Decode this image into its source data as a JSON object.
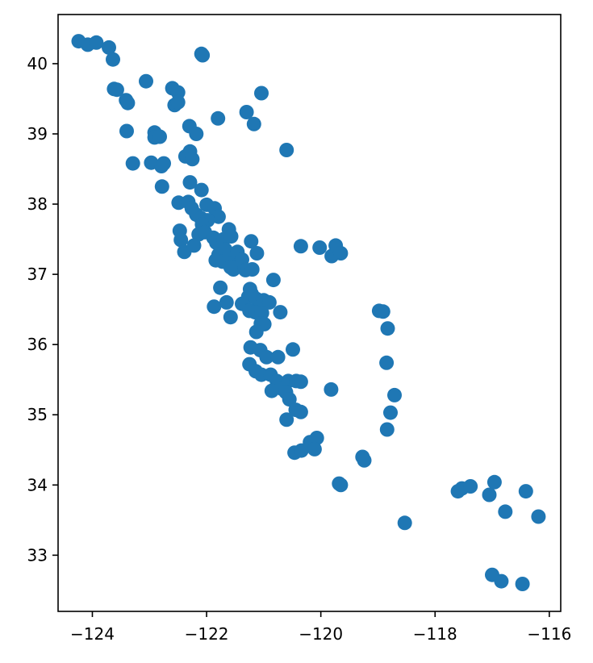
{
  "chart_data": {
    "type": "scatter",
    "title": "",
    "xlabel": "",
    "ylabel": "",
    "xlim": [
      -124.6,
      -115.8
    ],
    "ylim": [
      32.2,
      40.7
    ],
    "grid": false,
    "x_ticks": [
      -124,
      -122,
      -120,
      -118,
      -116
    ],
    "x_tick_labels": [
      "−124",
      "−122",
      "−120",
      "−118",
      "−116"
    ],
    "y_ticks": [
      33,
      34,
      35,
      36,
      37,
      38,
      39,
      40
    ],
    "y_tick_labels": [
      "33",
      "34",
      "35",
      "36",
      "37",
      "38",
      "39",
      "40"
    ],
    "series": [
      {
        "color": "#1f77b4",
        "marker": "circle",
        "points": [
          [
            -124.24,
            40.32
          ],
          [
            -124.08,
            40.27
          ],
          [
            -123.93,
            40.3
          ],
          [
            -123.71,
            40.23
          ],
          [
            -123.64,
            40.06
          ],
          [
            -123.62,
            39.64
          ],
          [
            -123.57,
            39.63
          ],
          [
            -123.41,
            39.48
          ],
          [
            -123.38,
            39.44
          ],
          [
            -123.4,
            39.04
          ],
          [
            -123.29,
            38.58
          ],
          [
            -123.06,
            39.75
          ],
          [
            -122.97,
            38.59
          ],
          [
            -122.91,
            39.02
          ],
          [
            -122.91,
            38.95
          ],
          [
            -122.82,
            38.96
          ],
          [
            -122.79,
            38.54
          ],
          [
            -122.75,
            38.58
          ],
          [
            -122.78,
            38.25
          ],
          [
            -122.6,
            39.65
          ],
          [
            -122.5,
            39.59
          ],
          [
            -122.56,
            39.41
          ],
          [
            -122.5,
            39.45
          ],
          [
            -122.09,
            40.14
          ],
          [
            -122.07,
            40.12
          ],
          [
            -121.3,
            39.31
          ],
          [
            -121.17,
            39.14
          ],
          [
            -121.04,
            39.58
          ],
          [
            -121.8,
            39.22
          ],
          [
            -122.3,
            39.11
          ],
          [
            -122.18,
            39.0
          ],
          [
            -122.37,
            38.68
          ],
          [
            -122.29,
            38.75
          ],
          [
            -122.25,
            38.64
          ],
          [
            -122.29,
            38.31
          ],
          [
            -122.09,
            38.2
          ],
          [
            -122.49,
            38.02
          ],
          [
            -122.32,
            38.03
          ],
          [
            -122.26,
            37.94
          ],
          [
            -122.18,
            37.85
          ],
          [
            -122.1,
            37.8
          ],
          [
            -122.0,
            37.99
          ],
          [
            -121.86,
            37.94
          ],
          [
            -121.79,
            37.82
          ],
          [
            -121.98,
            37.77
          ],
          [
            -122.08,
            37.71
          ],
          [
            -122.14,
            37.57
          ],
          [
            -122.03,
            37.6
          ],
          [
            -121.88,
            37.52
          ],
          [
            -121.83,
            37.45
          ],
          [
            -121.7,
            37.5
          ],
          [
            -121.61,
            37.64
          ],
          [
            -121.57,
            37.54
          ],
          [
            -121.67,
            37.35
          ],
          [
            -121.79,
            37.28
          ],
          [
            -121.84,
            37.2
          ],
          [
            -121.72,
            37.18
          ],
          [
            -121.6,
            37.28
          ],
          [
            -121.55,
            37.16
          ],
          [
            -121.46,
            37.32
          ],
          [
            -121.44,
            37.14
          ],
          [
            -121.38,
            37.21
          ],
          [
            -121.32,
            37.06
          ],
          [
            -121.2,
            37.07
          ],
          [
            -121.22,
            37.47
          ],
          [
            -121.12,
            37.3
          ],
          [
            -122.47,
            37.62
          ],
          [
            -122.45,
            37.49
          ],
          [
            -122.39,
            37.32
          ],
          [
            -122.22,
            37.41
          ],
          [
            -121.53,
            37.07
          ],
          [
            -121.58,
            37.1
          ],
          [
            -121.76,
            36.81
          ],
          [
            -121.65,
            36.6
          ],
          [
            -121.87,
            36.54
          ],
          [
            -121.58,
            36.39
          ],
          [
            -121.38,
            36.58
          ],
          [
            -121.27,
            36.68
          ],
          [
            -121.24,
            36.79
          ],
          [
            -121.21,
            36.72
          ],
          [
            -121.13,
            36.65
          ],
          [
            -121.05,
            36.55
          ],
          [
            -121.0,
            36.63
          ],
          [
            -120.9,
            36.6
          ],
          [
            -121.25,
            36.48
          ],
          [
            -121.15,
            36.46
          ],
          [
            -121.03,
            36.45
          ],
          [
            -121.05,
            36.3
          ],
          [
            -120.99,
            36.29
          ],
          [
            -121.13,
            36.18
          ],
          [
            -120.71,
            36.46
          ],
          [
            -120.83,
            36.92
          ],
          [
            -121.23,
            35.96
          ],
          [
            -121.06,
            35.92
          ],
          [
            -120.95,
            35.82
          ],
          [
            -120.75,
            35.82
          ],
          [
            -120.49,
            35.93
          ],
          [
            -121.25,
            35.72
          ],
          [
            -121.14,
            35.62
          ],
          [
            -121.04,
            35.57
          ],
          [
            -120.88,
            35.57
          ],
          [
            -120.77,
            35.48
          ],
          [
            -120.68,
            35.37
          ],
          [
            -120.86,
            35.34
          ],
          [
            -120.57,
            35.48
          ],
          [
            -120.43,
            35.48
          ],
          [
            -120.35,
            35.47
          ],
          [
            -120.61,
            35.32
          ],
          [
            -120.55,
            35.22
          ],
          [
            -120.44,
            35.07
          ],
          [
            -120.35,
            35.04
          ],
          [
            -120.6,
            34.93
          ],
          [
            -120.46,
            34.46
          ],
          [
            -120.34,
            34.49
          ],
          [
            -120.19,
            34.61
          ],
          [
            -120.07,
            34.67
          ],
          [
            -120.11,
            34.51
          ],
          [
            -120.35,
            37.4
          ],
          [
            -120.02,
            37.38
          ],
          [
            -119.81,
            37.26
          ],
          [
            -119.74,
            37.41
          ],
          [
            -119.65,
            37.3
          ],
          [
            -120.6,
            38.77
          ],
          [
            -119.82,
            35.36
          ],
          [
            -119.27,
            34.4
          ],
          [
            -119.24,
            34.35
          ],
          [
            -119.68,
            34.02
          ],
          [
            -119.65,
            34.0
          ],
          [
            -118.98,
            36.48
          ],
          [
            -118.91,
            36.47
          ],
          [
            -118.83,
            36.23
          ],
          [
            -118.85,
            35.74
          ],
          [
            -118.71,
            35.28
          ],
          [
            -118.78,
            35.03
          ],
          [
            -118.84,
            34.79
          ],
          [
            -118.53,
            33.46
          ],
          [
            -117.6,
            33.91
          ],
          [
            -117.53,
            33.95
          ],
          [
            -117.38,
            33.98
          ],
          [
            -117.05,
            33.86
          ],
          [
            -116.96,
            34.04
          ],
          [
            -116.41,
            33.91
          ],
          [
            -116.19,
            33.55
          ],
          [
            -116.77,
            33.62
          ],
          [
            -117.0,
            32.72
          ],
          [
            -116.84,
            32.63
          ],
          [
            -116.47,
            32.59
          ]
        ]
      }
    ]
  }
}
